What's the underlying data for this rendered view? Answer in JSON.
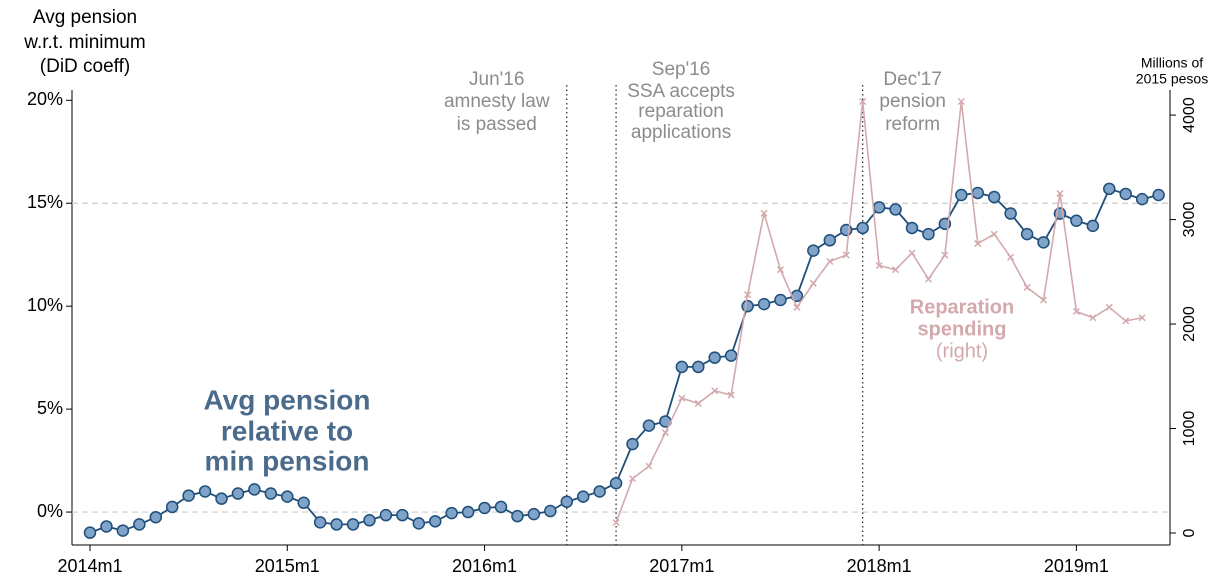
{
  "chart_data": {
    "type": "line",
    "y_title": [
      "Avg pension",
      "w.r.t. minimum",
      "(DiD coeff)"
    ],
    "y2_title": [
      "Millions of",
      "2015 pesos"
    ],
    "categories": [
      "2014m1",
      null,
      null,
      null,
      null,
      null,
      null,
      null,
      null,
      null,
      null,
      null,
      "2015m1",
      null,
      null,
      null,
      null,
      null,
      null,
      null,
      null,
      null,
      null,
      null,
      "2016m1",
      null,
      null,
      null,
      null,
      null,
      null,
      null,
      null,
      null,
      null,
      null,
      "2017m1",
      null,
      null,
      null,
      null,
      null,
      null,
      null,
      null,
      null,
      null,
      null,
      "2018m1",
      null,
      null,
      null,
      null,
      null,
      null,
      null,
      null,
      null,
      null,
      null,
      "2019m1",
      null,
      null,
      null,
      null,
      null
    ],
    "series": [
      {
        "name": [
          "Avg pension",
          "relative to",
          "min pension"
        ],
        "color": "#1f4e79",
        "marker_color": "#7fa3c9",
        "marker": "circle",
        "values": [
          -1.0,
          -0.7,
          -0.9,
          -0.6,
          -0.25,
          0.25,
          0.8,
          1.0,
          0.65,
          0.9,
          1.1,
          0.9,
          0.75,
          0.45,
          -0.5,
          -0.6,
          -0.6,
          -0.4,
          -0.15,
          -0.15,
          -0.55,
          -0.45,
          -0.05,
          0.0,
          0.2,
          0.25,
          -0.2,
          -0.1,
          0.05,
          0.5,
          0.75,
          1.0,
          1.4,
          3.3,
          4.2,
          4.4,
          7.05,
          7.05,
          7.5,
          7.6,
          10.0,
          10.1,
          10.3,
          10.5,
          12.7,
          13.2,
          13.7,
          13.8,
          14.8,
          14.7,
          13.8,
          13.5,
          14.0,
          15.4,
          15.5,
          15.3,
          14.5,
          13.5,
          13.1,
          14.5,
          14.15,
          13.9,
          15.7,
          15.45,
          15.2,
          15.4
        ]
      },
      {
        "name": [
          "Reparation",
          "spending"
        ],
        "note": "(right)",
        "color": "#d4a9ad",
        "marker": "x",
        "axis": "y2",
        "values": [
          null,
          null,
          null,
          null,
          null,
          null,
          null,
          null,
          null,
          null,
          null,
          null,
          null,
          null,
          null,
          null,
          null,
          null,
          null,
          null,
          null,
          null,
          null,
          null,
          null,
          null,
          null,
          null,
          null,
          null,
          null,
          null,
          100,
          520,
          640,
          960,
          1290,
          1240,
          1360,
          1320,
          2280,
          3060,
          2520,
          2160,
          2390,
          2600,
          2660,
          4130,
          2560,
          2520,
          2680,
          2430,
          2660,
          4130,
          2770,
          2860,
          2640,
          2350,
          2230,
          3250,
          2120,
          2060,
          2160,
          2030,
          2060,
          null
        ]
      }
    ],
    "ylim": [
      -1.6,
      20.5
    ],
    "yticks": [
      {
        "value": 0,
        "label": "0%"
      },
      {
        "value": 5,
        "label": "5%"
      },
      {
        "value": 10,
        "label": "10%"
      },
      {
        "value": 15,
        "label": "15%"
      },
      {
        "value": 20,
        "label": "20%"
      }
    ],
    "ygrid": [
      0,
      15
    ],
    "y2lim": [
      -115,
      4240
    ],
    "y2ticks": [
      0,
      1000,
      2000,
      3000,
      4000
    ],
    "events": [
      {
        "at": 29,
        "label": [
          "Jun'16",
          "amnesty law",
          "is passed"
        ]
      },
      {
        "at": 32,
        "label": [
          "Sep'16",
          "SSA accepts",
          "reparation",
          "applications"
        ]
      },
      {
        "at": 47,
        "label": [
          "Dec'17",
          "pension",
          "reform"
        ]
      }
    ]
  }
}
